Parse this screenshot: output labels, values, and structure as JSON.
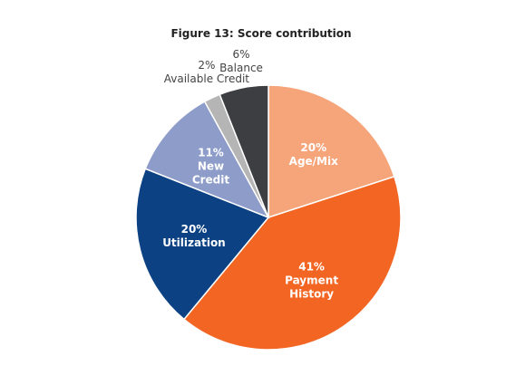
{
  "chart_data": {
    "type": "pie",
    "title": "Figure 13: Score contribution",
    "categories": [
      "Age/Mix",
      "Payment History",
      "Utilization",
      "New Credit",
      "Available Credit",
      "Balance"
    ],
    "values": [
      20,
      41,
      20,
      11,
      2,
      6
    ],
    "value_labels": [
      "20%",
      "41%",
      "20%",
      "11%",
      "2%",
      "6%"
    ],
    "colors": [
      "#f6a479",
      "#f26522",
      "#0c4283",
      "#8d9cc9",
      "#b5b5b5",
      "#3c3e41"
    ]
  }
}
